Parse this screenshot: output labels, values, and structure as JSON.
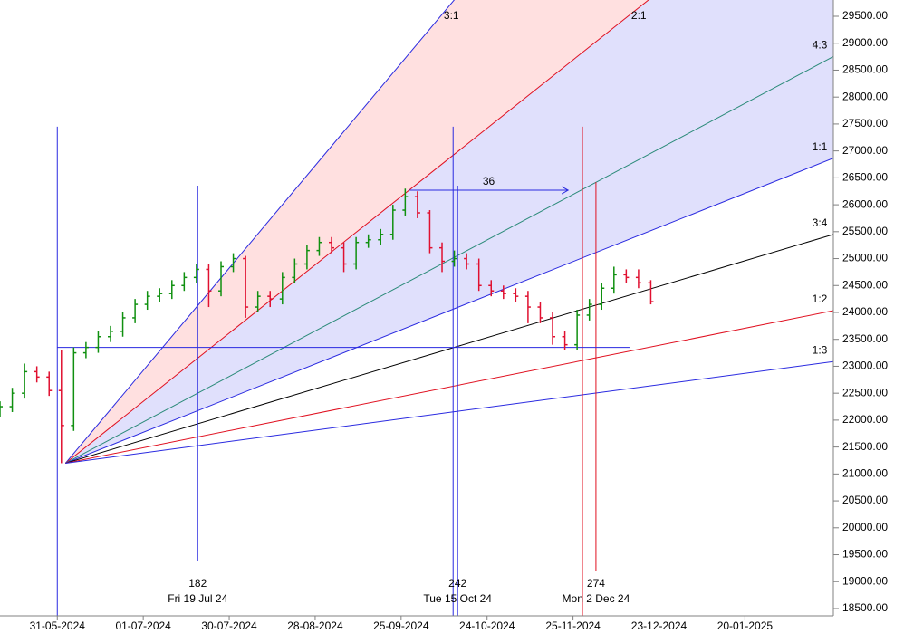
{
  "chart_data": {
    "type": "ohlc",
    "xlim": [
      -14,
      189.6
    ],
    "ylim": [
      18365,
      29803
    ],
    "xticks": [
      {
        "value": 0,
        "label": "31-05-2024"
      },
      {
        "value": 21,
        "label": "01-07-2024"
      },
      {
        "value": 42,
        "label": "30-07-2024"
      },
      {
        "value": 63,
        "label": "28-08-2024"
      },
      {
        "value": 84,
        "label": "25-09-2024"
      },
      {
        "value": 105,
        "label": "24-10-2024"
      },
      {
        "value": 126,
        "label": "25-11-2024"
      },
      {
        "value": 147,
        "label": "23-12-2024"
      },
      {
        "value": 168,
        "label": "20-01-2025"
      }
    ],
    "yticks": [
      {
        "value": 18500,
        "label": "18500.00"
      },
      {
        "value": 19000,
        "label": "19000.00"
      },
      {
        "value": 19500,
        "label": "19500.00"
      },
      {
        "value": 20000,
        "label": "20000.00"
      },
      {
        "value": 20500,
        "label": "20500.00"
      },
      {
        "value": 21000,
        "label": "21000.00"
      },
      {
        "value": 21500,
        "label": "21500.00"
      },
      {
        "value": 22000,
        "label": "22000.00"
      },
      {
        "value": 22500,
        "label": "22500.00"
      },
      {
        "value": 23000,
        "label": "23000.00"
      },
      {
        "value": 23500,
        "label": "23500.00"
      },
      {
        "value": 24000,
        "label": "24000.00"
      },
      {
        "value": 24500,
        "label": "24500.00"
      },
      {
        "value": 25000,
        "label": "25000.00"
      },
      {
        "value": 25500,
        "label": "25500.00"
      },
      {
        "value": 26000,
        "label": "26000.00"
      },
      {
        "value": 26500,
        "label": "26500.00"
      },
      {
        "value": 27000,
        "label": "27000.00"
      },
      {
        "value": 27500,
        "label": "27500.00"
      },
      {
        "value": 28000,
        "label": "28000.00"
      },
      {
        "value": 28500,
        "label": "28500.00"
      },
      {
        "value": 29000,
        "label": "29000.00"
      },
      {
        "value": 29500,
        "label": "29500.00"
      }
    ],
    "up_color": "#109010",
    "down_color": "#e01030",
    "x": [
      -14,
      -11,
      -8,
      -5,
      -2,
      1,
      4,
      7,
      10,
      13,
      16,
      19,
      22,
      25,
      28,
      31,
      34,
      37,
      40,
      43,
      46,
      49,
      52,
      55,
      58,
      61,
      64,
      67,
      70,
      73,
      76,
      79,
      82,
      85,
      88,
      91,
      94,
      97,
      100,
      103,
      106,
      109,
      112,
      115,
      118,
      121,
      124,
      127,
      130,
      133,
      136,
      139,
      142,
      145
    ],
    "open": [
      22150,
      22250,
      22500,
      22900,
      22800,
      22550,
      21900,
      23250,
      23350,
      23550,
      23650,
      23900,
      24150,
      24300,
      24350,
      24500,
      24650,
      24800,
      24400,
      24850,
      25000,
      24100,
      24300,
      24250,
      24650,
      24900,
      25150,
      25300,
      25200,
      24900,
      25300,
      25350,
      25450,
      25900,
      26150,
      25850,
      25200,
      24950,
      25000,
      24900,
      24500,
      24400,
      24350,
      24300,
      24100,
      23900,
      23550,
      23400,
      23950,
      24150,
      24450,
      24700,
      24650,
      24550
    ],
    "high": [
      22350,
      22600,
      23050,
      23000,
      22900,
      23300,
      23350,
      23450,
      23650,
      23750,
      24000,
      24250,
      24400,
      24450,
      24600,
      24750,
      24900,
      24900,
      24950,
      25100,
      25050,
      24400,
      24400,
      24750,
      25000,
      25250,
      25400,
      25400,
      25300,
      25400,
      25450,
      25550,
      26000,
      26300,
      26250,
      25900,
      25300,
      25150,
      25100,
      25000,
      24600,
      24500,
      24450,
      24400,
      24200,
      24000,
      23650,
      24050,
      24250,
      24550,
      24850,
      24800,
      24800,
      24600
    ],
    "low": [
      22050,
      22150,
      22400,
      22700,
      22450,
      21200,
      21800,
      23150,
      23250,
      23450,
      23550,
      23800,
      24050,
      24200,
      24250,
      24400,
      24550,
      24100,
      24300,
      24750,
      23900,
      24000,
      24100,
      24150,
      24550,
      24800,
      25050,
      25100,
      24750,
      24800,
      25200,
      25250,
      25350,
      25800,
      25750,
      25100,
      24750,
      24850,
      24800,
      24400,
      24300,
      24250,
      24200,
      23800,
      23800,
      23400,
      23300,
      23300,
      23850,
      24050,
      24350,
      24550,
      24450,
      24150
    ],
    "close": [
      22250,
      22500,
      22900,
      22800,
      22550,
      21900,
      23250,
      23350,
      23550,
      23650,
      23900,
      24150,
      24300,
      24350,
      24500,
      24650,
      24800,
      24400,
      24850,
      25000,
      24100,
      24300,
      24250,
      24650,
      24900,
      25150,
      25300,
      25200,
      24900,
      25300,
      25350,
      25450,
      25900,
      26150,
      25850,
      25200,
      24950,
      25000,
      24900,
      24500,
      24400,
      24350,
      24300,
      24100,
      23900,
      23550,
      23400,
      23950,
      24150,
      24450,
      24700,
      24650,
      24550,
      24200
    ],
    "fan": {
      "origin_x": 2,
      "origin_y": 21200,
      "unit": 30.2,
      "ratios": [
        {
          "label": "3:1",
          "value": 3,
          "color": "#2a2ae0",
          "fill": "#ffe0e0"
        },
        {
          "label": "2:1",
          "value": 2,
          "color": "#e01020",
          "fill": "#e0e0fc"
        },
        {
          "label": "4:3",
          "value": 1.333,
          "color": "#2a8a78",
          "fill": "#e0e0fc"
        },
        {
          "label": "1:1",
          "value": 1,
          "color": "#2a2ae0"
        },
        {
          "label": "3:4",
          "value": 0.75,
          "color": "#000000"
        },
        {
          "label": "1:2",
          "value": 0.5,
          "color": "#e01020"
        },
        {
          "label": "1:3",
          "value": 0.333,
          "color": "#2a2ae0"
        }
      ]
    },
    "verticals": [
      {
        "x": 0,
        "top": 27450,
        "bottom": 18365,
        "color": "#2a2ae0"
      },
      {
        "x": 34.3,
        "top": 26355,
        "bottom": 19374,
        "color": "#2a2ae0",
        "label": "182",
        "date": "Fri 19 Jul 24"
      },
      {
        "x": 96.7,
        "top": 27450,
        "bottom": 18365,
        "color": "#2a2ae0"
      },
      {
        "x": 97.8,
        "top": 26355,
        "bottom": 18365,
        "color": "#2a2ae0",
        "label": "242",
        "date": "Tue 15 Oct 24"
      },
      {
        "x": 128.3,
        "top": 27450,
        "bottom": 18365,
        "color": "#e01020"
      },
      {
        "x": 131.6,
        "top": 26420,
        "bottom": 19200,
        "color": "#e01020",
        "label": "274",
        "date": "Mon 2 Dec 24"
      }
    ],
    "hline": {
      "y": 23350,
      "x1": 0,
      "x2": 139.8,
      "color": "#2a2ae0"
    },
    "arrow": {
      "label": "36",
      "y": 26270,
      "x1": 86,
      "x2": 124.8,
      "color": "#2a2ae0"
    }
  }
}
